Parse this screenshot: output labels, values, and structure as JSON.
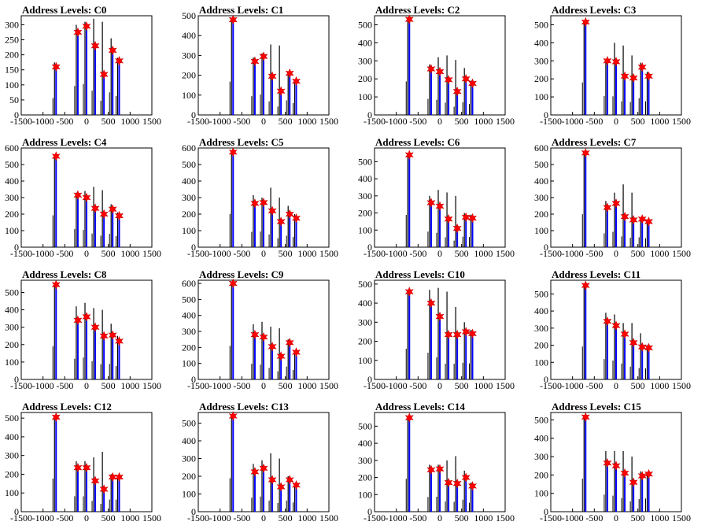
{
  "chart_data": [
    {
      "type": "bar",
      "title": "Address Levels: C0",
      "xlim": [
        -1500,
        1500
      ],
      "ylim": [
        0,
        330
      ],
      "yticks": [
        0,
        50,
        100,
        150,
        200,
        250,
        300
      ],
      "xticks": [
        -1500,
        -1000,
        -500,
        0,
        500,
        1000,
        1500
      ],
      "x": [
        -700,
        -200,
        0,
        200,
        400,
        600,
        750
      ],
      "peaks": [
        160,
        275,
        295,
        230,
        135,
        215,
        180
      ],
      "bars": [
        175,
        300,
        310,
        320,
        310,
        255,
        190
      ]
    },
    {
      "type": "bar",
      "title": "Address Levels: C1",
      "xlim": [
        -1500,
        1500
      ],
      "ylim": [
        0,
        500
      ],
      "yticks": [
        0,
        100,
        200,
        300,
        400,
        500
      ],
      "xticks": [
        -1500,
        -1000,
        -500,
        0,
        500,
        1000,
        1500
      ],
      "x": [
        -700,
        -200,
        0,
        200,
        400,
        600,
        750
      ],
      "peaks": [
        480,
        270,
        295,
        195,
        120,
        210,
        170
      ],
      "bars": [
        490,
        290,
        310,
        355,
        350,
        220,
        175
      ]
    },
    {
      "type": "bar",
      "title": "Address Levels: C2",
      "xlim": [
        -1500,
        1500
      ],
      "ylim": [
        0,
        550
      ],
      "yticks": [
        0,
        100,
        200,
        300,
        400,
        500
      ],
      "xticks": [
        -1500,
        -1000,
        -500,
        0,
        500,
        1000,
        1500
      ],
      "x": [
        -700,
        -200,
        0,
        200,
        400,
        600,
        750
      ],
      "peaks": [
        530,
        255,
        240,
        195,
        130,
        200,
        175
      ],
      "bars": [
        540,
        280,
        320,
        330,
        305,
        260,
        190
      ]
    },
    {
      "type": "bar",
      "title": "Address Levels: C3",
      "xlim": [
        -1500,
        1500
      ],
      "ylim": [
        0,
        550
      ],
      "yticks": [
        0,
        100,
        200,
        300,
        400,
        500
      ],
      "xticks": [
        -1500,
        -1000,
        -500,
        0,
        500,
        1000,
        1500
      ],
      "x": [
        -700,
        -200,
        0,
        200,
        400,
        600,
        750
      ],
      "peaks": [
        515,
        300,
        295,
        215,
        205,
        265,
        215
      ],
      "bars": [
        520,
        310,
        400,
        385,
        330,
        290,
        240
      ]
    },
    {
      "type": "bar",
      "title": "Address Levels: C4",
      "xlim": [
        -1500,
        1500
      ],
      "ylim": [
        0,
        600
      ],
      "yticks": [
        0,
        100,
        200,
        300,
        400,
        500,
        600
      ],
      "xticks": [
        -1500,
        -1000,
        -500,
        0,
        500,
        1000,
        1500
      ],
      "x": [
        -700,
        -200,
        0,
        200,
        400,
        600,
        750
      ],
      "peaks": [
        550,
        315,
        300,
        235,
        200,
        230,
        190
      ],
      "bars": [
        560,
        330,
        340,
        365,
        345,
        260,
        210
      ]
    },
    {
      "type": "bar",
      "title": "Address Levels: C5",
      "xlim": [
        -1500,
        1500
      ],
      "ylim": [
        0,
        600
      ],
      "yticks": [
        0,
        100,
        200,
        300,
        400,
        500,
        600
      ],
      "xticks": [
        -1500,
        -1000,
        -500,
        0,
        500,
        1000,
        1500
      ],
      "x": [
        -700,
        -200,
        0,
        200,
        400,
        600,
        750
      ],
      "peaks": [
        575,
        265,
        270,
        220,
        155,
        200,
        175
      ],
      "bars": [
        580,
        315,
        300,
        360,
        300,
        250,
        200
      ]
    },
    {
      "type": "bar",
      "title": "Address Levels: C6",
      "xlim": [
        -1500,
        1500
      ],
      "ylim": [
        0,
        580
      ],
      "yticks": [
        0,
        100,
        200,
        300,
        400,
        500
      ],
      "xticks": [
        -1500,
        -1000,
        -500,
        0,
        500,
        1000,
        1500
      ],
      "x": [
        -700,
        -200,
        0,
        200,
        400,
        600,
        750
      ],
      "peaks": [
        540,
        260,
        240,
        165,
        110,
        175,
        170
      ],
      "bars": [
        550,
        300,
        335,
        320,
        300,
        200,
        190
      ]
    },
    {
      "type": "bar",
      "title": "Address Levels: C7",
      "xlim": [
        -1500,
        1500
      ],
      "ylim": [
        0,
        600
      ],
      "yticks": [
        0,
        100,
        200,
        300,
        400,
        500,
        600
      ],
      "xticks": [
        -1500,
        -1000,
        -500,
        0,
        500,
        1000,
        1500
      ],
      "x": [
        -700,
        -200,
        0,
        200,
        400,
        600,
        750
      ],
      "peaks": [
        570,
        240,
        265,
        185,
        165,
        170,
        155
      ],
      "bars": [
        580,
        280,
        330,
        380,
        330,
        180,
        160
      ]
    },
    {
      "type": "bar",
      "title": "Address Levels: C8",
      "xlim": [
        -1500,
        1500
      ],
      "ylim": [
        0,
        570
      ],
      "yticks": [
        0,
        100,
        200,
        300,
        400,
        500
      ],
      "xticks": [
        -1500,
        -1000,
        -500,
        0,
        500,
        1000,
        1500
      ],
      "x": [
        -700,
        -200,
        0,
        200,
        400,
        600,
        750
      ],
      "peaks": [
        545,
        340,
        360,
        300,
        250,
        255,
        220
      ],
      "bars": [
        550,
        420,
        440,
        410,
        400,
        320,
        250
      ]
    },
    {
      "type": "bar",
      "title": "Address Levels: C9",
      "xlim": [
        -1500,
        1500
      ],
      "ylim": [
        0,
        620
      ],
      "yticks": [
        0,
        100,
        200,
        300,
        400,
        500,
        600
      ],
      "xticks": [
        -1500,
        -1000,
        -500,
        0,
        500,
        1000,
        1500
      ],
      "x": [
        -700,
        -200,
        0,
        200,
        400,
        600,
        750
      ],
      "peaks": [
        600,
        280,
        265,
        205,
        145,
        230,
        170
      ],
      "bars": [
        610,
        345,
        360,
        330,
        320,
        250,
        180
      ]
    },
    {
      "type": "bar",
      "title": "Address Levels: C10",
      "xlim": [
        -1500,
        1500
      ],
      "ylim": [
        0,
        520
      ],
      "yticks": [
        0,
        100,
        200,
        300,
        400,
        500
      ],
      "xticks": [
        -1500,
        -1000,
        -500,
        0,
        500,
        1000,
        1500
      ],
      "x": [
        -700,
        -200,
        0,
        200,
        400,
        600,
        750
      ],
      "peaks": [
        460,
        400,
        330,
        235,
        235,
        250,
        240
      ],
      "bars": [
        470,
        470,
        480,
        460,
        380,
        300,
        260
      ]
    },
    {
      "type": "bar",
      "title": "Address Levels: C11",
      "xlim": [
        -1500,
        1500
      ],
      "ylim": [
        0,
        580
      ],
      "yticks": [
        0,
        100,
        200,
        300,
        400,
        500
      ],
      "xticks": [
        -1500,
        -1000,
        -500,
        0,
        500,
        1000,
        1500
      ],
      "x": [
        -700,
        -200,
        0,
        200,
        400,
        600,
        750
      ],
      "peaks": [
        550,
        340,
        315,
        265,
        215,
        190,
        185
      ],
      "bars": [
        560,
        390,
        380,
        330,
        330,
        270,
        200
      ]
    },
    {
      "type": "bar",
      "title": "Address Levels: C12",
      "xlim": [
        -1500,
        1500
      ],
      "ylim": [
        0,
        530
      ],
      "yticks": [
        0,
        100,
        200,
        300,
        400,
        500
      ],
      "xticks": [
        -1500,
        -1000,
        -500,
        0,
        500,
        1000,
        1500
      ],
      "x": [
        -700,
        -200,
        0,
        200,
        400,
        600,
        750
      ],
      "peaks": [
        505,
        235,
        235,
        165,
        120,
        185,
        185
      ],
      "bars": [
        510,
        270,
        270,
        290,
        320,
        200,
        190
      ]
    },
    {
      "type": "bar",
      "title": "Address Levels: C13",
      "xlim": [
        -1500,
        1500
      ],
      "ylim": [
        0,
        560
      ],
      "yticks": [
        0,
        100,
        200,
        300,
        400,
        500
      ],
      "xticks": [
        -1500,
        -1000,
        -500,
        0,
        500,
        1000,
        1500
      ],
      "x": [
        -700,
        -200,
        0,
        200,
        400,
        600,
        750
      ],
      "peaks": [
        540,
        225,
        245,
        180,
        140,
        180,
        150
      ],
      "bars": [
        550,
        270,
        290,
        330,
        300,
        200,
        160
      ]
    },
    {
      "type": "bar",
      "title": "Address Levels: C14",
      "xlim": [
        -1500,
        1500
      ],
      "ylim": [
        0,
        580
      ],
      "yticks": [
        0,
        100,
        200,
        300,
        400,
        500
      ],
      "xticks": [
        -1500,
        -1000,
        -500,
        0,
        500,
        1000,
        1500
      ],
      "x": [
        -700,
        -200,
        0,
        200,
        400,
        600,
        750
      ],
      "peaks": [
        550,
        245,
        250,
        170,
        165,
        200,
        150
      ],
      "bars": [
        560,
        275,
        275,
        300,
        325,
        240,
        170
      ]
    },
    {
      "type": "bar",
      "title": "Address Levels: C15",
      "xlim": [
        -1500,
        1500
      ],
      "ylim": [
        0,
        540
      ],
      "yticks": [
        0,
        100,
        200,
        300,
        400,
        500
      ],
      "xticks": [
        -1500,
        -1000,
        -500,
        0,
        500,
        1000,
        1500
      ],
      "x": [
        -700,
        -200,
        0,
        200,
        400,
        600,
        750
      ],
      "peaks": [
        515,
        265,
        250,
        210,
        160,
        195,
        205
      ],
      "bars": [
        520,
        330,
        330,
        330,
        300,
        220,
        210
      ]
    }
  ]
}
